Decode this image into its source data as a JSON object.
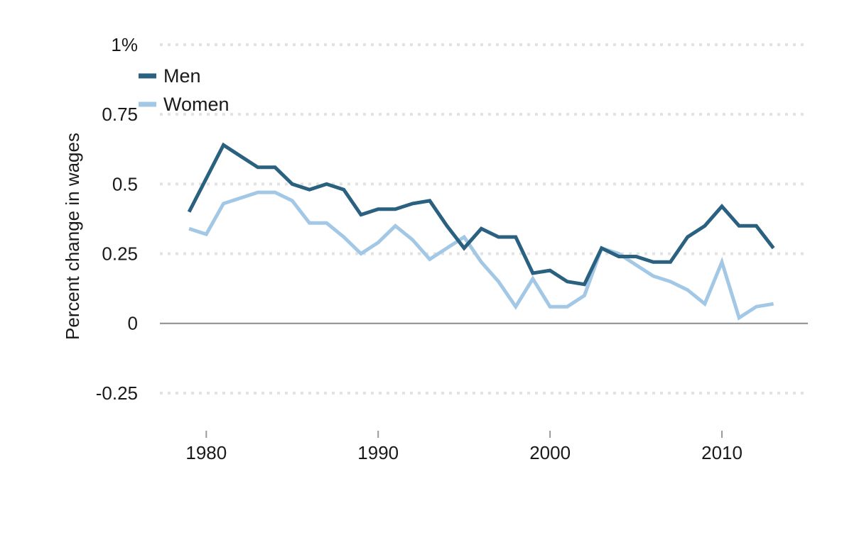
{
  "chart_data": {
    "type": "line",
    "ylabel": "Percent change in wages",
    "ylim": [
      -0.375,
      1.0
    ],
    "xlim": [
      1977.3,
      2015
    ],
    "y_ticks": [
      {
        "value": 1.0,
        "label": "1%"
      },
      {
        "value": 0.75,
        "label": "0.75"
      },
      {
        "value": 0.5,
        "label": "0.5"
      },
      {
        "value": 0.25,
        "label": "0.25"
      },
      {
        "value": 0,
        "label": "0"
      },
      {
        "value": -0.25,
        "label": "-0.25"
      }
    ],
    "x_ticks": [
      {
        "value": 1980,
        "label": "1980"
      },
      {
        "value": 1990,
        "label": "1990"
      },
      {
        "value": 2000,
        "label": "2000"
      },
      {
        "value": 2010,
        "label": "2010"
      }
    ],
    "grid": true,
    "legend_position": "top-left",
    "x": [
      1979,
      1980,
      1981,
      1982,
      1983,
      1984,
      1985,
      1986,
      1987,
      1988,
      1989,
      1990,
      1991,
      1992,
      1993,
      1994,
      1995,
      1996,
      1997,
      1998,
      1999,
      2000,
      2001,
      2002,
      2003,
      2004,
      2005,
      2006,
      2007,
      2008,
      2009,
      2010,
      2011,
      2012,
      2013
    ],
    "series": [
      {
        "name": "Men",
        "color": "#2a6080",
        "values": [
          0.4,
          0.52,
          0.64,
          0.6,
          0.56,
          0.56,
          0.5,
          0.48,
          0.5,
          0.48,
          0.39,
          0.41,
          0.41,
          0.43,
          0.44,
          0.35,
          0.27,
          0.34,
          0.31,
          0.31,
          0.18,
          0.19,
          0.15,
          0.14,
          0.27,
          0.24,
          0.24,
          0.22,
          0.22,
          0.31,
          0.35,
          0.42,
          0.35,
          0.35,
          0.27
        ]
      },
      {
        "name": "Women",
        "color": "#a3c8e6",
        "values": [
          0.34,
          0.32,
          0.43,
          0.45,
          0.47,
          0.47,
          0.44,
          0.36,
          0.36,
          0.31,
          0.25,
          0.29,
          0.35,
          0.3,
          0.23,
          0.27,
          0.31,
          0.22,
          0.15,
          0.06,
          0.16,
          0.06,
          0.06,
          0.1,
          0.27,
          0.25,
          0.21,
          0.17,
          0.15,
          0.12,
          0.07,
          0.22,
          0.02,
          0.06,
          0.07
        ]
      }
    ]
  }
}
